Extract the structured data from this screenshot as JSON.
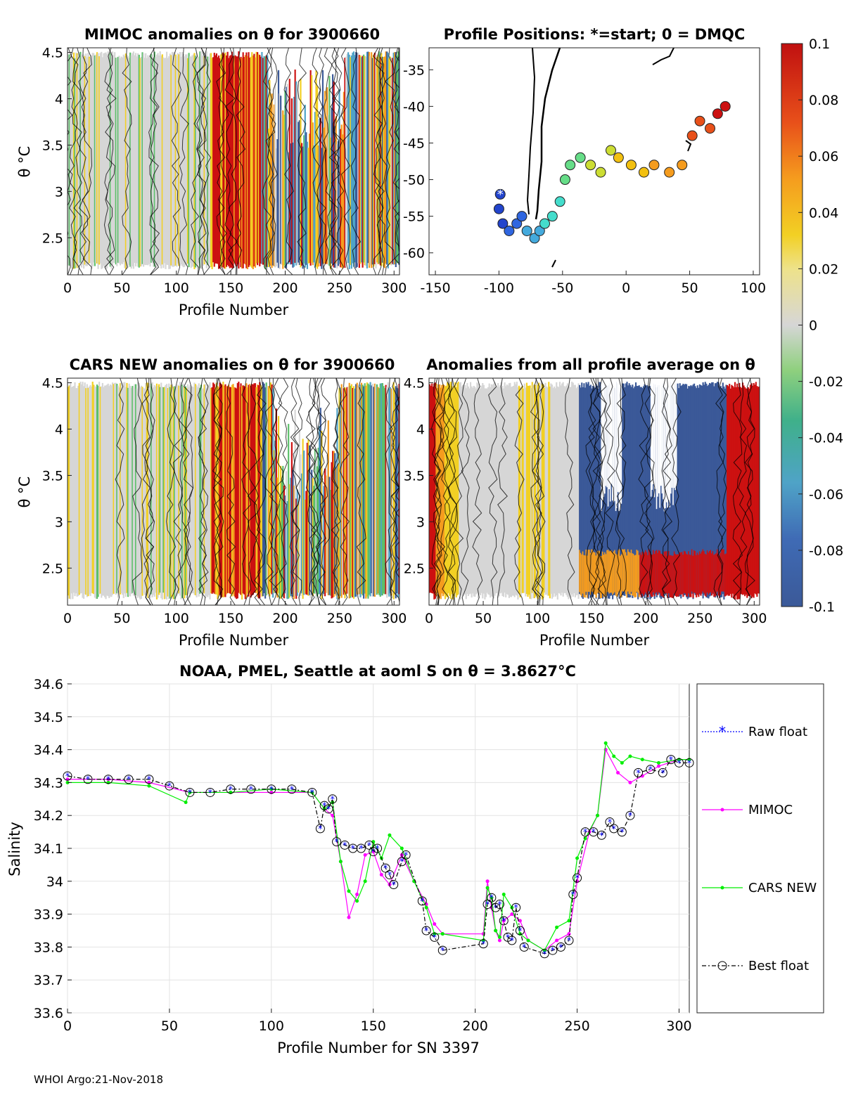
{
  "footer": "WHOI Argo:21-Nov-2018",
  "palette": {
    "neg": "#3b5998",
    "neg2": "#4fa3c7",
    "green": "#5cbf6a",
    "grey": "#d6d6d6",
    "yellow": "#f2d024",
    "orange": "#f59c1e",
    "red": "#cc1111",
    "mimoc": "#ff00ff",
    "cars": "#00ee00",
    "raw": "#0000ff"
  },
  "panels": {
    "mimoc": {
      "title": "MIMOC anomalies on θ  for 3900660",
      "xlabel": "Profile Number",
      "ylabel": "θ °C"
    },
    "positions": {
      "title": "Profile Positions: *=start; 0 = DMQC"
    },
    "cars": {
      "title": "CARS NEW anomalies on θ for 3900660",
      "xlabel": "Profile Number",
      "ylabel": "θ °C"
    },
    "average": {
      "title": "Anomalies from all profile average on θ",
      "xlabel": "Profile Number"
    }
  },
  "colorbar": {
    "ticks": [
      "0.1",
      "0.08",
      "0.06",
      "0.04",
      "0.02",
      "0",
      "-0.02",
      "-0.04",
      "-0.06",
      "-0.08",
      "-0.1"
    ]
  },
  "chart_data": [
    {
      "type": "heatmap",
      "title": "MIMOC anomalies on θ  for 3900660",
      "xlabel": "Profile Number",
      "ylabel": "θ °C",
      "xticks": [
        "0",
        "50",
        "100",
        "150",
        "200",
        "250",
        "300"
      ],
      "yticks": [
        "4.5",
        "4",
        "3.5",
        "3",
        "2.5"
      ],
      "xlim": [
        0,
        305
      ],
      "ylim": [
        2.1,
        4.55
      ]
    },
    {
      "type": "scatter",
      "title": "Profile Positions: *=start; 0 = DMQC",
      "xticks": [
        "-150",
        "-100",
        "-50",
        "0",
        "50",
        "100"
      ],
      "yticks": [
        "-35",
        "-40",
        "-45",
        "-50",
        "-55",
        "-60"
      ],
      "xlim": [
        -155,
        105
      ],
      "ylim": [
        -63,
        -32
      ],
      "track": [
        [
          -99,
          -52
        ],
        [
          -100,
          -54
        ],
        [
          -97,
          -56
        ],
        [
          -92,
          -57
        ],
        [
          -86,
          -56
        ],
        [
          -82,
          -55
        ],
        [
          -78,
          -57
        ],
        [
          -72,
          -58
        ],
        [
          -68,
          -57
        ],
        [
          -64,
          -56
        ],
        [
          -58,
          -55
        ],
        [
          -52,
          -53
        ],
        [
          -48,
          -50
        ],
        [
          -44,
          -48
        ],
        [
          -36,
          -47
        ],
        [
          -28,
          -48
        ],
        [
          -20,
          -49
        ],
        [
          -12,
          -46
        ],
        [
          -6,
          -47
        ],
        [
          4,
          -48
        ],
        [
          14,
          -49
        ],
        [
          22,
          -48
        ],
        [
          34,
          -49
        ],
        [
          44,
          -48
        ],
        [
          52,
          -44
        ],
        [
          58,
          -42
        ],
        [
          66,
          -43
        ],
        [
          72,
          -41
        ],
        [
          78,
          -40
        ]
      ]
    },
    {
      "type": "heatmap",
      "title": "CARS NEW anomalies on θ for 3900660",
      "xlabel": "Profile Number",
      "ylabel": "θ °C",
      "xticks": [
        "0",
        "50",
        "100",
        "150",
        "200",
        "250",
        "300"
      ],
      "yticks": [
        "4.5",
        "4",
        "3.5",
        "3",
        "2.5"
      ],
      "xlim": [
        0,
        305
      ],
      "ylim": [
        2.1,
        4.55
      ]
    },
    {
      "type": "heatmap",
      "title": "Anomalies from all profile average on θ",
      "xlabel": "Profile Number",
      "xticks": [
        "0",
        "50",
        "100",
        "150",
        "200",
        "250",
        "300"
      ],
      "yticks": [
        "4.5",
        "4",
        "3.5",
        "3",
        "2.5"
      ],
      "xlim": [
        0,
        305
      ],
      "ylim": [
        2.1,
        4.55
      ]
    },
    {
      "type": "line",
      "title": "NOAA, PMEL, Seattle at aoml S on θ = 3.8627°C",
      "xlabel": "Profile Number for SN 3397",
      "ylabel": "Salinity",
      "xticks": [
        "0",
        "50",
        "100",
        "150",
        "200",
        "250",
        "300"
      ],
      "yticks": [
        "34.6",
        "34.5",
        "34.4",
        "34.3",
        "34.2",
        "34.1",
        "34",
        "33.9",
        "33.8",
        "33.7",
        "33.6"
      ],
      "xlim": [
        0,
        305
      ],
      "ylim": [
        33.6,
        34.6
      ],
      "legend": [
        "Raw float",
        "MIMOC",
        "CARS NEW",
        "Best float"
      ],
      "series": [
        {
          "name": "Best float",
          "x": [
            0,
            10,
            20,
            30,
            40,
            50,
            60,
            70,
            80,
            90,
            100,
            110,
            120,
            124,
            126,
            128,
            130,
            132,
            136,
            140,
            144,
            148,
            150,
            152,
            156,
            158,
            160,
            164,
            166,
            174,
            176,
            180,
            184,
            204,
            206,
            208,
            210,
            212,
            214,
            216,
            218,
            220,
            222,
            224,
            234,
            238,
            242,
            246,
            248,
            250,
            254,
            258,
            262,
            266,
            268,
            272,
            276,
            280,
            286,
            292,
            296,
            300,
            305
          ],
          "y": [
            34.32,
            34.31,
            34.31,
            34.31,
            34.31,
            34.29,
            34.27,
            34.27,
            34.28,
            34.28,
            34.28,
            34.28,
            34.27,
            34.16,
            34.23,
            34.22,
            34.25,
            34.12,
            34.11,
            34.1,
            34.1,
            34.11,
            34.09,
            34.1,
            34.04,
            34.02,
            33.99,
            34.06,
            34.08,
            33.94,
            33.85,
            33.83,
            33.79,
            33.81,
            33.93,
            33.95,
            33.92,
            33.93,
            33.88,
            33.83,
            33.82,
            33.92,
            33.85,
            33.8,
            33.78,
            33.79,
            33.8,
            33.82,
            33.96,
            34.01,
            34.15,
            34.15,
            34.14,
            34.18,
            34.16,
            34.15,
            34.2,
            34.33,
            34.34,
            34.33,
            34.37,
            34.36,
            34.36
          ]
        },
        {
          "name": "MIMOC",
          "x": [
            0,
            20,
            40,
            60,
            80,
            100,
            120,
            126,
            130,
            134,
            138,
            142,
            146,
            150,
            154,
            158,
            164,
            170,
            176,
            180,
            184,
            204,
            206,
            208,
            210,
            212,
            214,
            218,
            222,
            226,
            234,
            240,
            246,
            250,
            256,
            260,
            264,
            270,
            276,
            282,
            290,
            300,
            305
          ],
          "y": [
            34.31,
            34.31,
            34.3,
            34.27,
            34.27,
            34.27,
            34.27,
            34.22,
            34.2,
            34.06,
            33.89,
            33.96,
            34.08,
            34.09,
            34.02,
            33.99,
            34.08,
            34.0,
            33.93,
            33.87,
            33.84,
            33.84,
            34.0,
            33.92,
            33.85,
            33.82,
            33.88,
            33.9,
            33.88,
            33.82,
            33.79,
            33.82,
            33.84,
            34.0,
            34.15,
            34.2,
            34.4,
            34.33,
            34.3,
            34.32,
            34.35,
            34.37,
            34.37
          ]
        },
        {
          "name": "CARS NEW",
          "x": [
            0,
            20,
            40,
            58,
            60,
            80,
            100,
            120,
            126,
            130,
            134,
            138,
            142,
            146,
            150,
            154,
            158,
            164,
            170,
            176,
            180,
            184,
            204,
            206,
            208,
            210,
            212,
            214,
            218,
            222,
            226,
            234,
            240,
            246,
            250,
            254,
            260,
            264,
            268,
            272,
            276,
            282,
            290,
            300,
            305
          ],
          "y": [
            34.3,
            34.3,
            34.29,
            34.24,
            34.27,
            34.27,
            34.28,
            34.27,
            34.22,
            34.24,
            34.06,
            33.97,
            33.94,
            34.0,
            34.12,
            34.07,
            34.14,
            34.1,
            34.0,
            33.92,
            33.84,
            33.84,
            33.82,
            33.98,
            33.95,
            33.85,
            33.83,
            33.96,
            33.92,
            33.84,
            33.82,
            33.79,
            33.86,
            33.88,
            34.07,
            34.13,
            34.2,
            34.42,
            34.38,
            34.36,
            34.38,
            34.37,
            34.36,
            34.37,
            34.37
          ]
        }
      ]
    }
  ]
}
